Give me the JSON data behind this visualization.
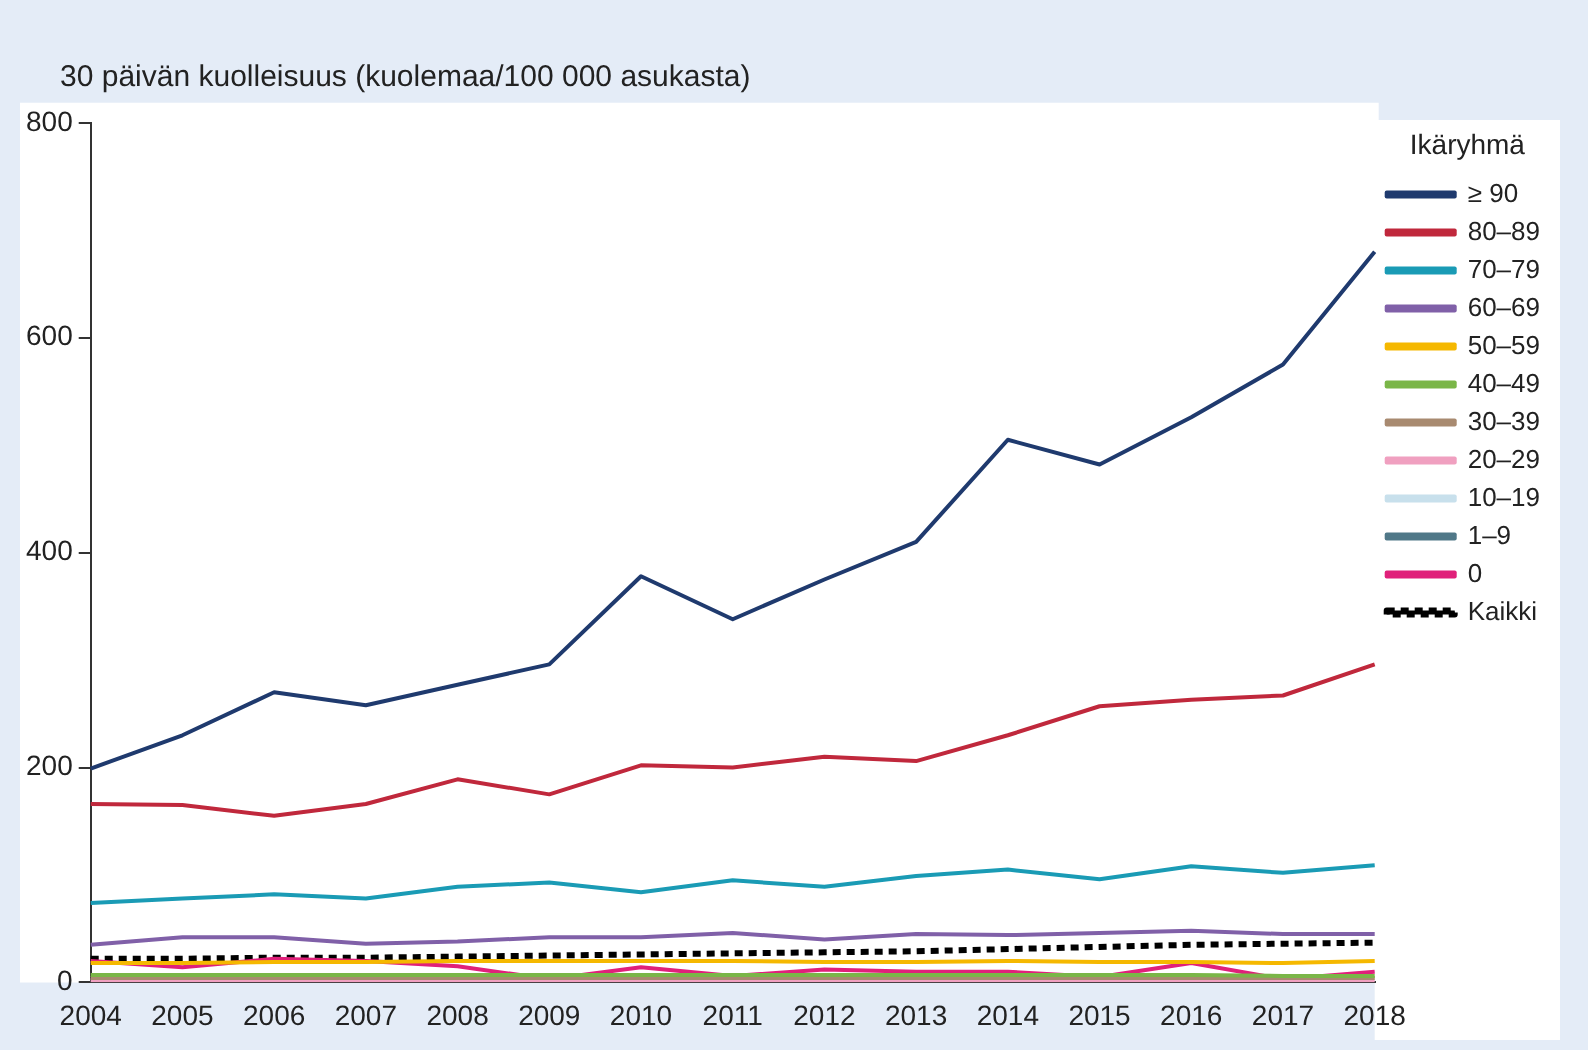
{
  "chart_data": {
    "type": "line",
    "title": "30 päivän kuolleisuus (kuolemaa/100 000 asukasta)",
    "legend_title": "Ikäryhmä",
    "legend": "right",
    "grid": false,
    "marker": "none",
    "categories": [
      "2004",
      "2005",
      "2006",
      "2007",
      "2008",
      "2009",
      "2010",
      "2011",
      "2012",
      "2013",
      "2014",
      "2015",
      "2016",
      "2017",
      "2018"
    ],
    "ylim": [
      0,
      800
    ],
    "yticks": [
      0,
      200,
      400,
      600,
      800
    ],
    "series": [
      {
        "name": "≥ 90",
        "color": "#1f3a6e",
        "values": [
          199,
          230,
          270,
          258,
          277,
          296,
          378,
          338,
          375,
          410,
          505,
          482,
          526,
          575,
          680
        ]
      },
      {
        "name": "80–89",
        "color": "#c0283c",
        "values": [
          166,
          165,
          155,
          166,
          189,
          175,
          202,
          200,
          210,
          206,
          230,
          257,
          263,
          267,
          296
        ]
      },
      {
        "name": "70–79",
        "color": "#1a9bb5",
        "values": [
          74,
          78,
          82,
          78,
          89,
          93,
          84,
          95,
          89,
          99,
          105,
          96,
          108,
          102,
          109
        ]
      },
      {
        "name": "60–69",
        "color": "#8060a8",
        "values": [
          35,
          42,
          42,
          36,
          38,
          42,
          42,
          46,
          40,
          45,
          44,
          46,
          48,
          45,
          45
        ]
      },
      {
        "name": "50–59",
        "color": "#f5b800",
        "values": [
          18,
          18,
          19,
          19,
          20,
          20,
          20,
          20,
          19,
          19,
          20,
          19,
          19,
          18,
          20
        ]
      },
      {
        "name": "40–49",
        "color": "#7ab648",
        "values": [
          7,
          7,
          7,
          7,
          7,
          7,
          7,
          7,
          7,
          7,
          7,
          7,
          7,
          6,
          6
        ]
      },
      {
        "name": "30–39",
        "color": "#a88a70",
        "values": [
          4,
          4,
          4,
          4,
          4,
          4,
          4,
          4,
          4,
          4,
          4,
          4,
          4,
          4,
          4
        ]
      },
      {
        "name": "20–29",
        "color": "#f0a0c0",
        "values": [
          2,
          2,
          2,
          2,
          2,
          2,
          2,
          2,
          2,
          2,
          2,
          2,
          2,
          2,
          2
        ]
      },
      {
        "name": "10–19",
        "color": "#c8e0ec",
        "values": [
          null,
          null,
          null,
          null,
          null,
          null,
          null,
          null,
          null,
          null,
          null,
          null,
          null,
          null,
          null
        ]
      },
      {
        "name": "1–9",
        "color": "#507888",
        "values": [
          null,
          null,
          null,
          null,
          null,
          null,
          null,
          null,
          null,
          null,
          null,
          null,
          null,
          null,
          null
        ]
      },
      {
        "name": "0",
        "color": "#e0207a",
        "values": [
          20,
          14,
          22,
          20,
          15,
          3,
          14,
          6,
          12,
          10,
          10,
          5,
          18,
          3,
          10
        ]
      },
      {
        "name": "Kaikki",
        "color": "#000000",
        "line_style": "dashed",
        "values": [
          22,
          22,
          23,
          23,
          24,
          25,
          26,
          27,
          28,
          29,
          31,
          33,
          35,
          36,
          37
        ]
      }
    ]
  }
}
